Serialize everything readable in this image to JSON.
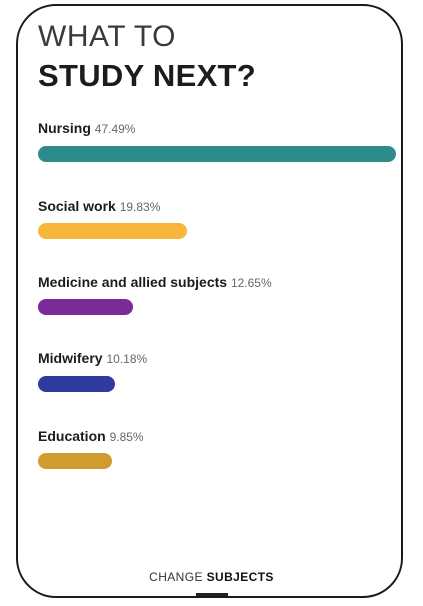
{
  "header": {
    "line1": "WHAT TO",
    "line2": "STUDY NEXT?"
  },
  "items": [
    {
      "name": "Nursing",
      "percent_text": "47.49%",
      "percent": 47.49,
      "color": "#2e8b8b"
    },
    {
      "name": "Social work",
      "percent_text": "19.83%",
      "percent": 19.83,
      "color": "#f6b73c"
    },
    {
      "name": "Medicine and allied subjects",
      "percent_text": "12.65%",
      "percent": 12.65,
      "color": "#7a2b97"
    },
    {
      "name": "Midwifery",
      "percent_text": "10.18%",
      "percent": 10.18,
      "color": "#2e3a9f"
    },
    {
      "name": "Education",
      "percent_text": "9.85%",
      "percent": 9.85,
      "color": "#d29b2e"
    }
  ],
  "footer": {
    "prefix": "CHANGE",
    "emphasis": "SUBJECTS"
  }
}
